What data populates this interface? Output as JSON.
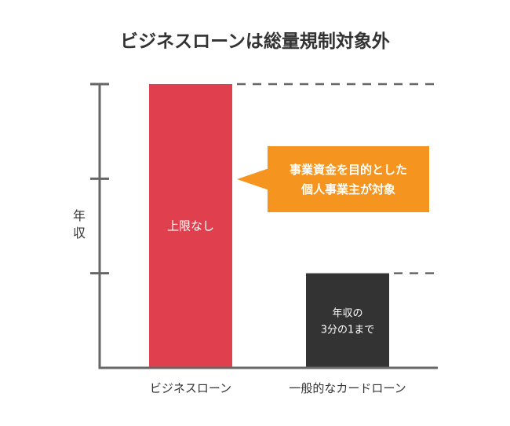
{
  "chart_data": {
    "type": "bar",
    "title": "ビジネスローンは総量規制対象外",
    "ylabel": "年収",
    "categories": [
      "ビジネスローン",
      "一般的なカードローン"
    ],
    "values": [
      3,
      1
    ],
    "ylim": [
      0,
      3
    ],
    "bar_labels": [
      "上限なし",
      [
        "年収の",
        "3分の1まで"
      ]
    ],
    "bar_colors": [
      "#e0404d",
      "#333333"
    ],
    "axis_color": "#666666",
    "callout": {
      "lines": [
        "事業資金を目的とした",
        "個人事業主が対象"
      ],
      "color": "#f5951f"
    }
  }
}
